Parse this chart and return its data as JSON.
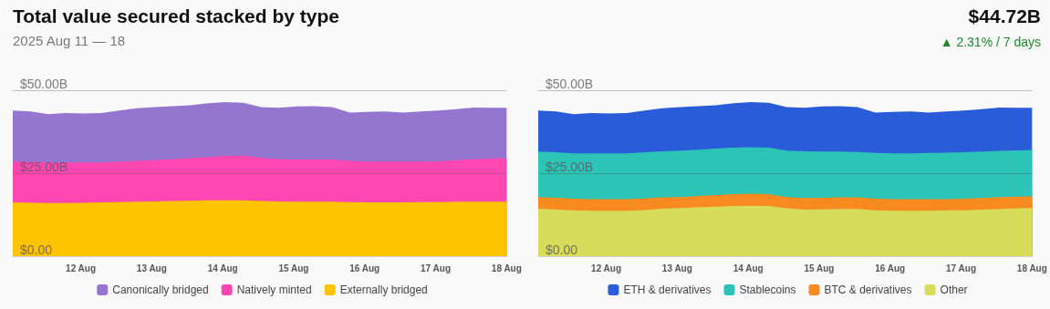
{
  "chart_data": [
    {
      "type": "area",
      "title": "Total value secured stacked by type",
      "subtitle": "2025 Aug 11 — 18",
      "annotations": [
        "$44.72B",
        "▲ 2.31% / 7 days"
      ],
      "stacked": true,
      "legend": "bottom",
      "grid": "y",
      "x": [
        "2025-08-11T01:00",
        "2025-08-11T07:00",
        "2025-08-11T13:00",
        "2025-08-11T19:00",
        "2025-08-12T01:00",
        "2025-08-12T07:00",
        "2025-08-12T13:00",
        "2025-08-12T19:00",
        "2025-08-13T01:00",
        "2025-08-13T07:00",
        "2025-08-13T13:00",
        "2025-08-13T19:00",
        "2025-08-14T01:00",
        "2025-08-14T07:00",
        "2025-08-14T13:00",
        "2025-08-14T19:00",
        "2025-08-15T01:00",
        "2025-08-15T07:00",
        "2025-08-15T13:00",
        "2025-08-15T19:00",
        "2025-08-16T01:00",
        "2025-08-16T07:00",
        "2025-08-16T13:00",
        "2025-08-16T19:00",
        "2025-08-17T01:00",
        "2025-08-17T07:00",
        "2025-08-17T13:00",
        "2025-08-17T19:00",
        "2025-08-18T00:00"
      ],
      "xlim": [
        "2025-08-11T01:00",
        "2025-08-18T00:00"
      ],
      "xticks": [
        {
          "value": "2025-08-12",
          "label": "12 Aug"
        },
        {
          "value": "2025-08-13",
          "label": "13 Aug"
        },
        {
          "value": "2025-08-14",
          "label": "14 Aug"
        },
        {
          "value": "2025-08-15",
          "label": "15 Aug"
        },
        {
          "value": "2025-08-16",
          "label": "16 Aug"
        },
        {
          "value": "2025-08-17",
          "label": "17 Aug"
        },
        {
          "value": "2025-08-18",
          "label": "18 Aug"
        }
      ],
      "ylim": [
        0,
        50
      ],
      "yticks": [
        {
          "value": 0,
          "label": "$0.00"
        },
        {
          "value": 25,
          "label": "$25.00B"
        },
        {
          "value": 50,
          "label": "$50.00B"
        }
      ],
      "series": [
        {
          "name": "Externally bridged",
          "color": "#ffc400",
          "values": [
            16.2,
            16.1,
            16.0,
            16.0,
            16.1,
            16.2,
            16.3,
            16.4,
            16.5,
            16.6,
            16.7,
            16.8,
            16.8,
            16.8,
            16.6,
            16.5,
            16.4,
            16.4,
            16.4,
            16.3,
            16.2,
            16.2,
            16.2,
            16.3,
            16.3,
            16.4,
            16.4,
            16.4,
            16.4
          ]
        },
        {
          "name": "Natively minted",
          "color": "#ff46b1",
          "values": [
            12.3,
            12.3,
            12.2,
            12.2,
            12.1,
            12.0,
            12.1,
            12.3,
            12.4,
            12.6,
            12.8,
            13.0,
            13.4,
            13.5,
            13.0,
            12.7,
            12.7,
            12.7,
            12.7,
            12.4,
            12.3,
            12.3,
            12.3,
            12.2,
            12.3,
            12.5,
            12.8,
            13.0,
            13.1
          ]
        },
        {
          "name": "Canonically bridged",
          "color": "#9476d1",
          "values": [
            15.4,
            15.2,
            14.6,
            14.9,
            14.8,
            14.9,
            15.5,
            15.9,
            16.0,
            16.0,
            16.0,
            16.3,
            16.2,
            15.9,
            15.3,
            15.5,
            16.0,
            16.1,
            15.8,
            14.6,
            15.0,
            15.1,
            14.8,
            15.1,
            15.3,
            15.4,
            15.6,
            15.3,
            15.2
          ]
        }
      ]
    },
    {
      "type": "area",
      "stacked": true,
      "legend": "bottom",
      "grid": "y",
      "x": [
        "2025-08-11T01:00",
        "2025-08-11T07:00",
        "2025-08-11T13:00",
        "2025-08-11T19:00",
        "2025-08-12T01:00",
        "2025-08-12T07:00",
        "2025-08-12T13:00",
        "2025-08-12T19:00",
        "2025-08-13T01:00",
        "2025-08-13T07:00",
        "2025-08-13T13:00",
        "2025-08-13T19:00",
        "2025-08-14T01:00",
        "2025-08-14T07:00",
        "2025-08-14T13:00",
        "2025-08-14T19:00",
        "2025-08-15T01:00",
        "2025-08-15T07:00",
        "2025-08-15T13:00",
        "2025-08-15T19:00",
        "2025-08-16T01:00",
        "2025-08-16T07:00",
        "2025-08-16T13:00",
        "2025-08-16T19:00",
        "2025-08-17T01:00",
        "2025-08-17T07:00",
        "2025-08-17T13:00",
        "2025-08-17T19:00",
        "2025-08-18T00:00"
      ],
      "xlim": [
        "2025-08-11T01:00",
        "2025-08-18T00:00"
      ],
      "xticks": [
        {
          "value": "2025-08-12",
          "label": "12 Aug"
        },
        {
          "value": "2025-08-13",
          "label": "13 Aug"
        },
        {
          "value": "2025-08-14",
          "label": "14 Aug"
        },
        {
          "value": "2025-08-15",
          "label": "15 Aug"
        },
        {
          "value": "2025-08-16",
          "label": "16 Aug"
        },
        {
          "value": "2025-08-17",
          "label": "17 Aug"
        },
        {
          "value": "2025-08-18",
          "label": "18 Aug"
        }
      ],
      "ylim": [
        0,
        50
      ],
      "yticks": [
        {
          "value": 0,
          "label": "$0.00"
        },
        {
          "value": 25,
          "label": "$25.00B"
        },
        {
          "value": 50,
          "label": "$50.00B"
        }
      ],
      "series": [
        {
          "name": "Other",
          "color": "#d7dc5b",
          "values": [
            14.3,
            14.1,
            13.8,
            13.7,
            13.7,
            13.7,
            13.9,
            14.3,
            14.5,
            14.7,
            14.9,
            15.1,
            15.2,
            15.1,
            14.4,
            14.0,
            14.1,
            14.2,
            14.2,
            13.8,
            13.7,
            13.7,
            13.7,
            13.8,
            13.8,
            14.0,
            14.2,
            14.4,
            14.5
          ]
        },
        {
          "name": "BTC & derivatives",
          "color": "#f98a1f",
          "values": [
            3.5,
            3.5,
            3.5,
            3.5,
            3.5,
            3.5,
            3.5,
            3.4,
            3.3,
            3.4,
            3.5,
            3.6,
            3.6,
            3.6,
            3.4,
            3.5,
            3.5,
            3.5,
            3.5,
            3.5,
            3.5,
            3.5,
            3.5,
            3.4,
            3.5,
            3.5,
            3.6,
            3.5,
            3.5
          ]
        },
        {
          "name": "Stablecoins",
          "color": "#2cc4b6",
          "values": [
            13.7,
            13.7,
            13.7,
            13.8,
            13.8,
            13.8,
            13.9,
            13.9,
            14.0,
            14.0,
            14.0,
            14.0,
            14.0,
            14.0,
            14.0,
            14.1,
            13.9,
            13.8,
            13.7,
            13.8,
            13.8,
            13.8,
            13.9,
            14.0,
            14.0,
            14.0,
            13.9,
            14.0,
            14.0
          ]
        },
        {
          "name": "ETH & derivatives",
          "color": "#2a5bd8",
          "values": [
            12.4,
            12.3,
            11.8,
            12.1,
            12.0,
            12.1,
            12.6,
            13.0,
            13.1,
            13.1,
            13.1,
            13.4,
            13.6,
            13.5,
            13.1,
            13.1,
            13.6,
            13.7,
            13.5,
            12.2,
            12.5,
            12.6,
            12.2,
            12.4,
            12.6,
            12.8,
            13.1,
            12.8,
            12.7
          ]
        }
      ]
    }
  ]
}
